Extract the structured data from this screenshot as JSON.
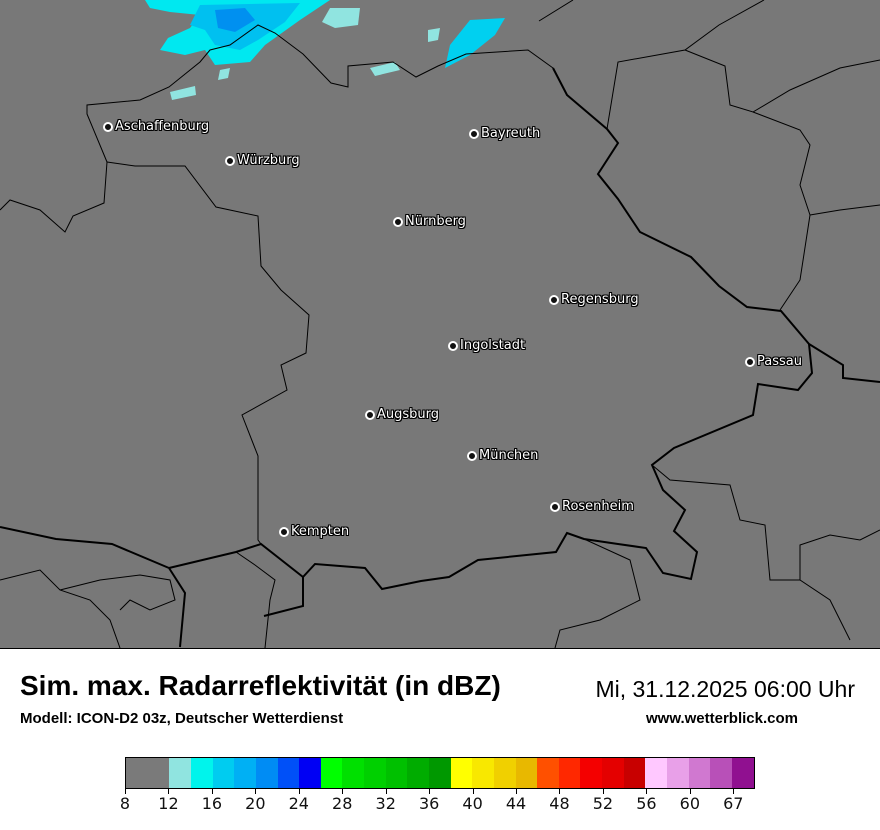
{
  "header": {
    "title": "Sim. max. Radarreflektivität (in dBZ)",
    "datetime": "Mi, 31.12.2025 06:00 Uhr",
    "model": "Modell: ICON-D2 03z, Deutscher Wetterdienst",
    "site": "www.wetterblick.com"
  },
  "map": {
    "background_color": "#787878",
    "cities": [
      {
        "name": "Aschaffenburg"
      },
      {
        "name": "Würzburg"
      },
      {
        "name": "Bayreuth"
      },
      {
        "name": "Nürnberg"
      },
      {
        "name": "Regensburg"
      },
      {
        "name": "Ingolstadt"
      },
      {
        "name": "Passau"
      },
      {
        "name": "Augsburg"
      },
      {
        "name": "München"
      },
      {
        "name": "Rosenheim"
      },
      {
        "name": "Kempten"
      }
    ]
  },
  "legend": {
    "unit": "dBZ",
    "bins": [
      {
        "from": 8,
        "to": 12,
        "color": "#7a7a7a"
      },
      {
        "from": 12,
        "to": 14,
        "color": "#90e4e0"
      },
      {
        "from": 14,
        "to": 16,
        "color": "#00f4ec"
      },
      {
        "from": 16,
        "to": 18,
        "color": "#00ccf0"
      },
      {
        "from": 18,
        "to": 20,
        "color": "#00b0f4"
      },
      {
        "from": 20,
        "to": 22,
        "color": "#008cf4"
      },
      {
        "from": 22,
        "to": 24,
        "color": "#0050f8"
      },
      {
        "from": 24,
        "to": 26,
        "color": "#0000f4"
      },
      {
        "from": 26,
        "to": 28,
        "color": "#00ff00"
      },
      {
        "from": 28,
        "to": 30,
        "color": "#00e000"
      },
      {
        "from": 30,
        "to": 32,
        "color": "#00d000"
      },
      {
        "from": 32,
        "to": 34,
        "color": "#00c000"
      },
      {
        "from": 34,
        "to": 36,
        "color": "#00ac00"
      },
      {
        "from": 36,
        "to": 38,
        "color": "#009800"
      },
      {
        "from": 38,
        "to": 40,
        "color": "#ffff00"
      },
      {
        "from": 40,
        "to": 42,
        "color": "#f8e800"
      },
      {
        "from": 42,
        "to": 44,
        "color": "#f0d000"
      },
      {
        "from": 44,
        "to": 46,
        "color": "#e8b800"
      },
      {
        "from": 46,
        "to": 48,
        "color": "#ff5000"
      },
      {
        "from": 48,
        "to": 50,
        "color": "#ff2800"
      },
      {
        "from": 50,
        "to": 52,
        "color": "#f40000"
      },
      {
        "from": 52,
        "to": 54,
        "color": "#e40000"
      },
      {
        "from": 54,
        "to": 56,
        "color": "#c80000"
      },
      {
        "from": 56,
        "to": 58,
        "color": "#ffc8ff"
      },
      {
        "from": 58,
        "to": 60,
        "color": "#e8a0e8"
      },
      {
        "from": 60,
        "to": 62,
        "color": "#d078d0"
      },
      {
        "from": 62,
        "to": 64,
        "color": "#b850b8"
      },
      {
        "from": 64,
        "to": 67,
        "color": "#901090"
      }
    ],
    "ticks": [
      "8",
      "12",
      "16",
      "20",
      "24",
      "28",
      "32",
      "36",
      "40",
      "44",
      "48",
      "52",
      "56",
      "60",
      "67"
    ]
  }
}
